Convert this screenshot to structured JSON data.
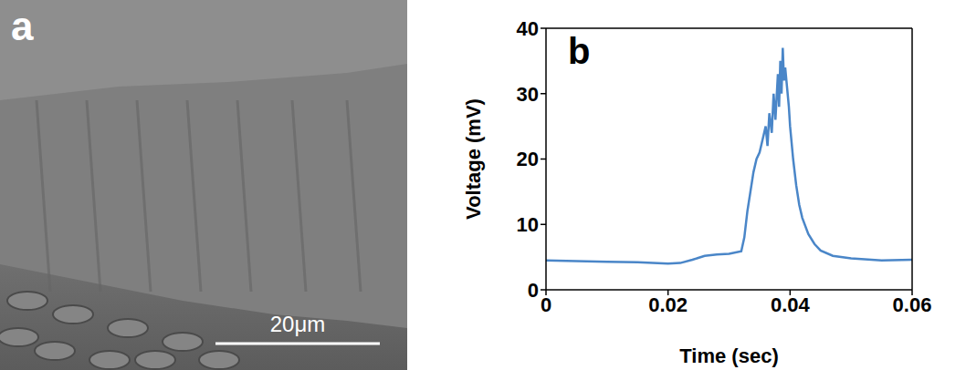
{
  "panel_a": {
    "label": "a",
    "scale_bar": "20μm"
  },
  "chart_data": {
    "type": "line",
    "panel_label": "b",
    "x_label": "Time (sec)",
    "y_label": "Voltage (mV)",
    "x": [
      0,
      0.005,
      0.01,
      0.015,
      0.02,
      0.022,
      0.024,
      0.026,
      0.028,
      0.03,
      0.032,
      0.0325,
      0.033,
      0.0335,
      0.034,
      0.0345,
      0.035,
      0.0355,
      0.036,
      0.0363,
      0.0366,
      0.037,
      0.0373,
      0.0376,
      0.038,
      0.0382,
      0.0384,
      0.0386,
      0.0388,
      0.039,
      0.0392,
      0.0395,
      0.0398,
      0.04,
      0.0405,
      0.041,
      0.0415,
      0.042,
      0.043,
      0.044,
      0.045,
      0.047,
      0.05,
      0.055,
      0.06
    ],
    "series": [
      {
        "name": "Voltage",
        "color": "#4a86c8",
        "values": [
          4.5,
          4.4,
          4.3,
          4.2,
          4.0,
          4.1,
          4.6,
          5.2,
          5.4,
          5.5,
          5.9,
          8,
          12,
          15,
          18,
          20,
          21,
          23,
          25,
          22,
          27,
          24,
          30,
          26,
          33,
          28,
          35,
          30,
          37,
          32,
          34,
          31,
          28,
          25,
          20,
          16,
          13,
          11,
          8.5,
          7,
          6,
          5.2,
          4.8,
          4.5,
          4.6
        ]
      }
    ],
    "xlim": [
      0,
      0.06
    ],
    "xticks": [
      0,
      0.02,
      0.04,
      0.06
    ],
    "ylim": [
      0,
      40
    ],
    "yticks": [
      0,
      10,
      20,
      30,
      40
    ],
    "grid": false
  }
}
